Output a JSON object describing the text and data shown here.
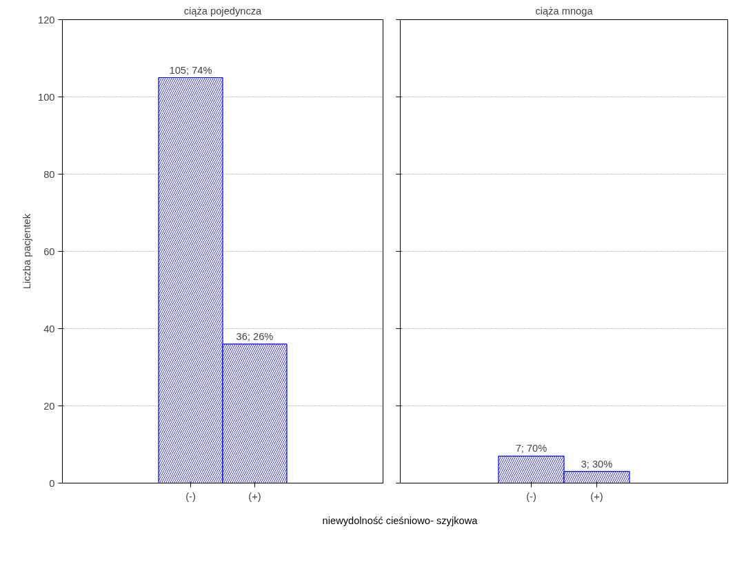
{
  "chart_data": [
    {
      "type": "bar",
      "title": "ciąża pojedyncza",
      "xlabel": "niewydolność cieśniowo- szyjkowa",
      "ylabel": "Liczba pacjentek",
      "categories": [
        "(-)",
        "(+)"
      ],
      "values": [
        105,
        36
      ],
      "color": "#0000ff",
      "value_labels": [
        "105; 74%",
        "36; 26%"
      ],
      "ylim": [
        0,
        120
      ],
      "yticks": [
        0,
        20,
        40,
        60,
        80,
        100,
        120
      ],
      "grid": "y"
    },
    {
      "type": "bar",
      "title": "ciąża mnoga",
      "categories": [
        "(-)",
        "(+)"
      ],
      "values": [
        7,
        3
      ],
      "color": "#0000ff",
      "value_labels": [
        "7; 70%",
        "3; 30%"
      ],
      "ylim": [
        0,
        120
      ],
      "yticks": [
        0,
        20,
        40,
        60,
        80,
        100,
        120
      ],
      "grid": "y",
      "tick_labels": "x"
    }
  ]
}
